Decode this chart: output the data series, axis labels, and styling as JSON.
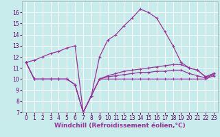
{
  "xlabel": "Windchill (Refroidissement éolien,°C)",
  "background_color": "#c8ecec",
  "grid_color": "#ffffff",
  "line_color": "#993399",
  "x_hours": [
    0,
    1,
    2,
    3,
    4,
    5,
    6,
    7,
    8,
    9,
    10,
    11,
    12,
    13,
    14,
    15,
    16,
    17,
    18,
    19,
    20,
    21,
    22,
    23
  ],
  "series": [
    [
      11.5,
      11.7,
      12.0,
      12.3,
      12.5,
      12.8,
      13.0,
      7.0,
      8.5,
      12.0,
      13.5,
      14.0,
      14.8,
      15.5,
      16.3,
      16.0,
      15.5,
      14.3,
      13.0,
      11.5,
      11.0,
      10.8,
      10.2,
      10.5
    ],
    [
      11.5,
      10.0,
      10.0,
      10.0,
      10.0,
      10.0,
      9.5,
      7.0,
      8.5,
      10.0,
      10.3,
      10.5,
      10.7,
      10.8,
      10.9,
      11.0,
      11.1,
      11.2,
      11.3,
      11.3,
      11.0,
      10.8,
      10.2,
      10.5
    ],
    [
      11.5,
      10.0,
      10.0,
      10.0,
      10.0,
      10.0,
      9.5,
      7.0,
      8.5,
      10.0,
      10.2,
      10.3,
      10.4,
      10.5,
      10.6,
      10.6,
      10.7,
      10.7,
      10.8,
      10.8,
      10.5,
      10.3,
      10.1,
      10.4
    ],
    [
      11.5,
      10.0,
      10.0,
      10.0,
      10.0,
      10.0,
      9.5,
      7.0,
      8.5,
      10.0,
      10.0,
      10.0,
      10.0,
      10.0,
      10.0,
      10.0,
      10.0,
      10.0,
      10.0,
      10.0,
      10.0,
      10.0,
      10.0,
      10.3
    ]
  ],
  "ylim": [
    7,
    17
  ],
  "yticks": [
    7,
    8,
    9,
    10,
    11,
    12,
    13,
    14,
    15,
    16
  ],
  "xticks": [
    0,
    1,
    2,
    3,
    4,
    5,
    6,
    7,
    8,
    9,
    10,
    11,
    12,
    13,
    14,
    15,
    16,
    17,
    18,
    19,
    20,
    21,
    22,
    23
  ],
  "tick_fontsize": 5.5,
  "xlabel_fontsize": 6.5
}
